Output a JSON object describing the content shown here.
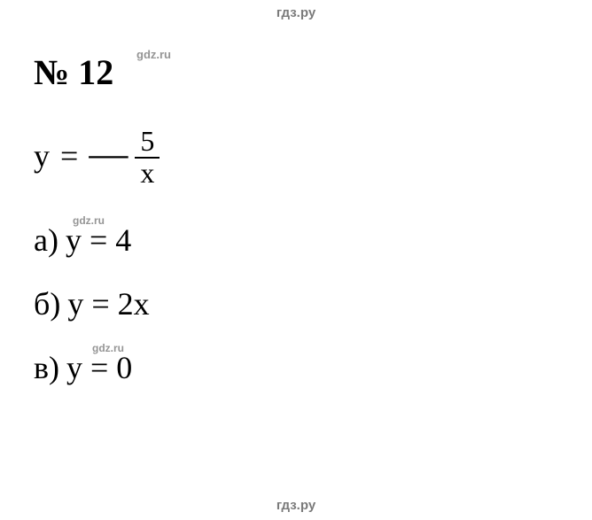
{
  "watermark": {
    "text": "гдз.ру",
    "color": "#7a7a7a",
    "font_family": "Arial, sans-serif",
    "font_size": 15,
    "font_weight": "bold"
  },
  "inline_watermark": {
    "text": "gdz.ru",
    "color": "#7a7a7a",
    "font_size": 12
  },
  "problem": {
    "number_sign": "№",
    "number": "12",
    "number_fontsize": 40,
    "number_fontweight": "bold"
  },
  "main_equation": {
    "lhs": "y",
    "eq": "=",
    "sign": "—",
    "numerator": "5",
    "denominator": "x",
    "fontsize": 36
  },
  "items": {
    "a": {
      "label": "а)",
      "expr": "y = 4"
    },
    "b": {
      "label": "б)",
      "expr": "y = 2x"
    },
    "v": {
      "label": "в)",
      "expr": "y = 0"
    }
  },
  "style": {
    "background_color": "#ffffff",
    "text_color": "#000000",
    "body_fontsize": 36,
    "body_font_family": "Times New Roman"
  }
}
